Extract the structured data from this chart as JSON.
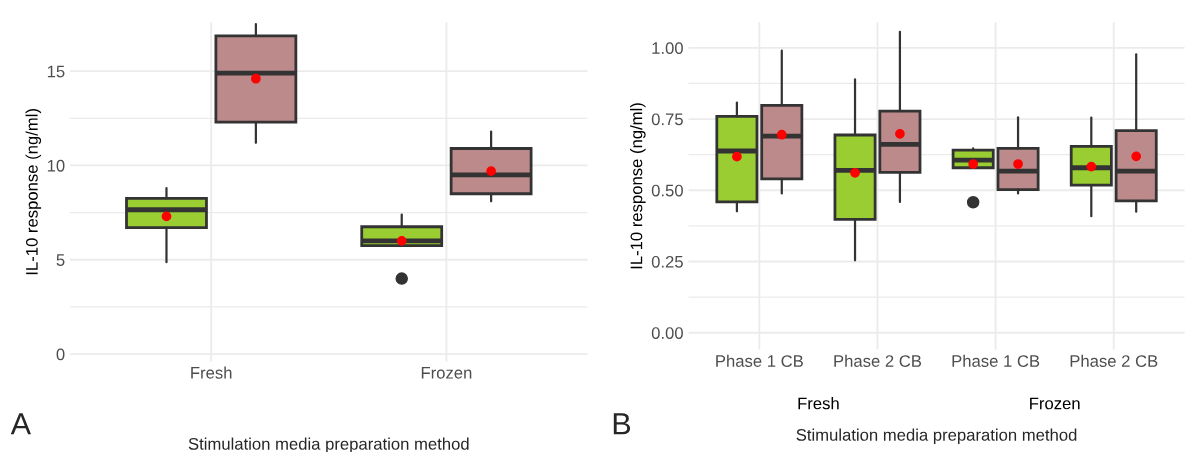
{
  "chart_data": [
    {
      "type": "box",
      "xlabel": "Stimulation media preparation method",
      "ylabel": "IL-10 response (ng/ml)",
      "categories": [
        "Fresh",
        "Frozen"
      ],
      "ylim": [
        -0.4,
        17.6
      ],
      "yticks": [
        0,
        5,
        10,
        15
      ],
      "grid": true,
      "annotations": [
        "A"
      ],
      "series": [
        {
          "color": "#9acd32",
          "boxes": [
            {
              "low": 4.87,
              "q1": 6.7,
              "median": 7.65,
              "q3": 8.25,
              "high": 8.8,
              "mean": 7.3
            },
            {
              "low": 5.75,
              "q1": 5.75,
              "median": 6.0,
              "q3": 6.75,
              "high": 7.4,
              "mean": 6.0,
              "outliers": [
                4.0
              ]
            }
          ]
        },
        {
          "color": "#bc8a8a",
          "boxes": [
            {
              "low": 11.2,
              "q1": 12.3,
              "median": 14.9,
              "q3": 16.87,
              "high": 17.5,
              "mean": 14.6
            },
            {
              "low": 8.1,
              "q1": 8.5,
              "median": 9.5,
              "q3": 10.9,
              "high": 11.8,
              "mean": 9.7
            }
          ]
        }
      ]
    },
    {
      "type": "box",
      "xlabel": "Stimulation media preparation method",
      "ylabel": "IL-10 response (ng/ml)",
      "categories": [
        "Phase 1 CB",
        "Phase 2 CB",
        "Phase 1 CB",
        "Phase 2 CB"
      ],
      "ylim": [
        -0.06,
        1.09
      ],
      "yticks": [
        {
          "value": 0,
          "label": "0.00"
        },
        {
          "value": 0.25,
          "label": "0.25"
        },
        {
          "value": 0.5,
          "label": "0.50"
        },
        {
          "value": 0.75,
          "label": "0.75"
        },
        {
          "value": 1,
          "label": "1.00"
        }
      ],
      "grid": true,
      "annotations": [
        "Fresh",
        "Frozen",
        "B"
      ],
      "series": [
        {
          "color": "#9acd32",
          "boxes": [
            {
              "low": 0.426,
              "q1": 0.459,
              "median": 0.638,
              "q3": 0.759,
              "high": 0.808,
              "mean": 0.618
            },
            {
              "low": 0.254,
              "q1": 0.398,
              "median": 0.57,
              "q3": 0.694,
              "high": 0.889,
              "mean": 0.561
            },
            {
              "low": 0.579,
              "q1": 0.579,
              "median": 0.606,
              "q3": 0.641,
              "high": 0.647,
              "mean": 0.592,
              "outliers": [
                0.458
              ]
            },
            {
              "low": 0.409,
              "q1": 0.518,
              "median": 0.579,
              "q3": 0.654,
              "high": 0.755,
              "mean": 0.583
            }
          ]
        },
        {
          "color": "#bc8a8a",
          "boxes": [
            {
              "low": 0.489,
              "q1": 0.54,
              "median": 0.69,
              "q3": 0.798,
              "high": 0.99,
              "mean": 0.695
            },
            {
              "low": 0.459,
              "q1": 0.563,
              "median": 0.661,
              "q3": 0.778,
              "high": 1.056,
              "mean": 0.698
            },
            {
              "low": 0.489,
              "q1": 0.502,
              "median": 0.567,
              "q3": 0.647,
              "high": 0.756,
              "mean": 0.592
            },
            {
              "low": 0.425,
              "q1": 0.463,
              "median": 0.567,
              "q3": 0.709,
              "high": 0.977,
              "mean": 0.619
            }
          ]
        }
      ]
    }
  ]
}
